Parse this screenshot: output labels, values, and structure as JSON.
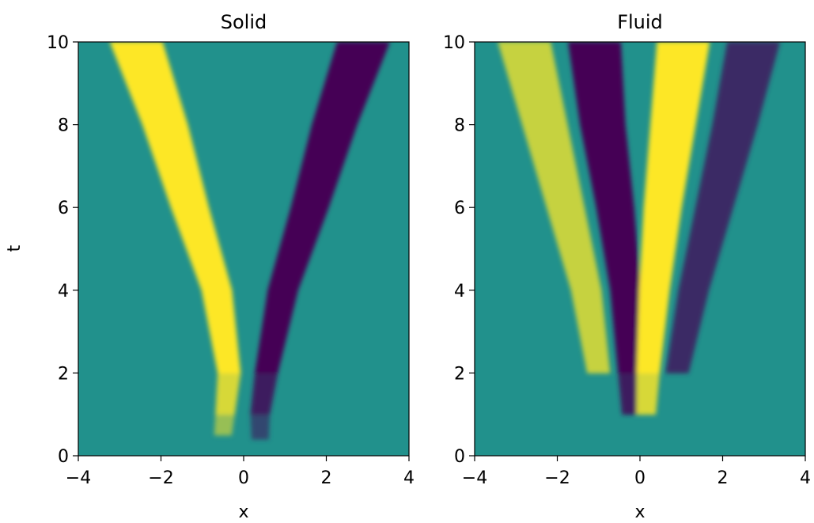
{
  "chart_data": [
    {
      "type": "heatmap",
      "title": "Solid",
      "xlabel": "x",
      "ylabel": "t",
      "xlim": [
        -4,
        4
      ],
      "ylim": [
        0,
        10
      ],
      "xticks": [
        -4,
        -2,
        0,
        2,
        4
      ],
      "yticks": [
        0,
        2,
        4,
        6,
        8,
        10
      ],
      "xtick_labels": [
        "−4",
        "−2",
        "0",
        "2",
        "4"
      ],
      "ytick_labels": [
        "0",
        "2",
        "4",
        "6",
        "8",
        "10"
      ],
      "colormap": "viridis",
      "features": [
        {
          "sign": "positive",
          "points": [
            [
              -0.5,
              0.5
            ],
            [
              -0.45,
              1.0
            ],
            [
              -0.35,
              2.0
            ],
            [
              -0.65,
              4.0
            ],
            [
              -1.3,
              6.0
            ],
            [
              -1.9,
              8.0
            ],
            [
              -2.6,
              10.0
            ]
          ],
          "peak": 1.0
        },
        {
          "sign": "negative",
          "points": [
            [
              0.4,
              0.4
            ],
            [
              0.4,
              1.0
            ],
            [
              0.55,
              2.0
            ],
            [
              0.95,
              4.0
            ],
            [
              1.6,
              6.0
            ],
            [
              2.2,
              8.0
            ],
            [
              2.9,
              10.0
            ]
          ],
          "peak": 1.0
        }
      ]
    },
    {
      "type": "heatmap",
      "title": "Fluid",
      "xlabel": "x",
      "ylabel": "",
      "xlim": [
        -4,
        4
      ],
      "ylim": [
        0,
        10
      ],
      "xticks": [
        -4,
        -2,
        0,
        2,
        4
      ],
      "yticks": [
        0,
        2,
        4,
        6,
        8,
        10
      ],
      "xtick_labels": [
        "−4",
        "−2",
        "0",
        "2",
        "4"
      ],
      "ytick_labels": [
        "0",
        "2",
        "4",
        "6",
        "8",
        "10"
      ],
      "colormap": "viridis",
      "features": [
        {
          "sign": "positive",
          "points": [
            [
              -1.0,
              2.0
            ],
            [
              -1.3,
              4.0
            ],
            [
              -1.8,
              6.0
            ],
            [
              -2.3,
              8.0
            ],
            [
              -2.8,
              10.0
            ]
          ],
          "peak": 0.75
        },
        {
          "sign": "negative",
          "points": [
            [
              -0.2,
              1.0
            ],
            [
              -0.25,
              2.0
            ],
            [
              -0.35,
              4.0
            ],
            [
              -0.6,
              6.0
            ],
            [
              -0.9,
              8.0
            ],
            [
              -1.1,
              10.0
            ]
          ],
          "peak": 1.0
        },
        {
          "sign": "positive",
          "points": [
            [
              0.15,
              1.0
            ],
            [
              0.2,
              2.0
            ],
            [
              0.35,
              4.0
            ],
            [
              0.55,
              6.0
            ],
            [
              0.8,
              8.0
            ],
            [
              1.05,
              10.0
            ]
          ],
          "peak": 1.0
        },
        {
          "sign": "negative",
          "points": [
            [
              0.9,
              2.0
            ],
            [
              1.3,
              4.0
            ],
            [
              1.8,
              6.0
            ],
            [
              2.3,
              8.0
            ],
            [
              2.75,
              10.0
            ]
          ],
          "peak": 0.7
        }
      ]
    }
  ]
}
